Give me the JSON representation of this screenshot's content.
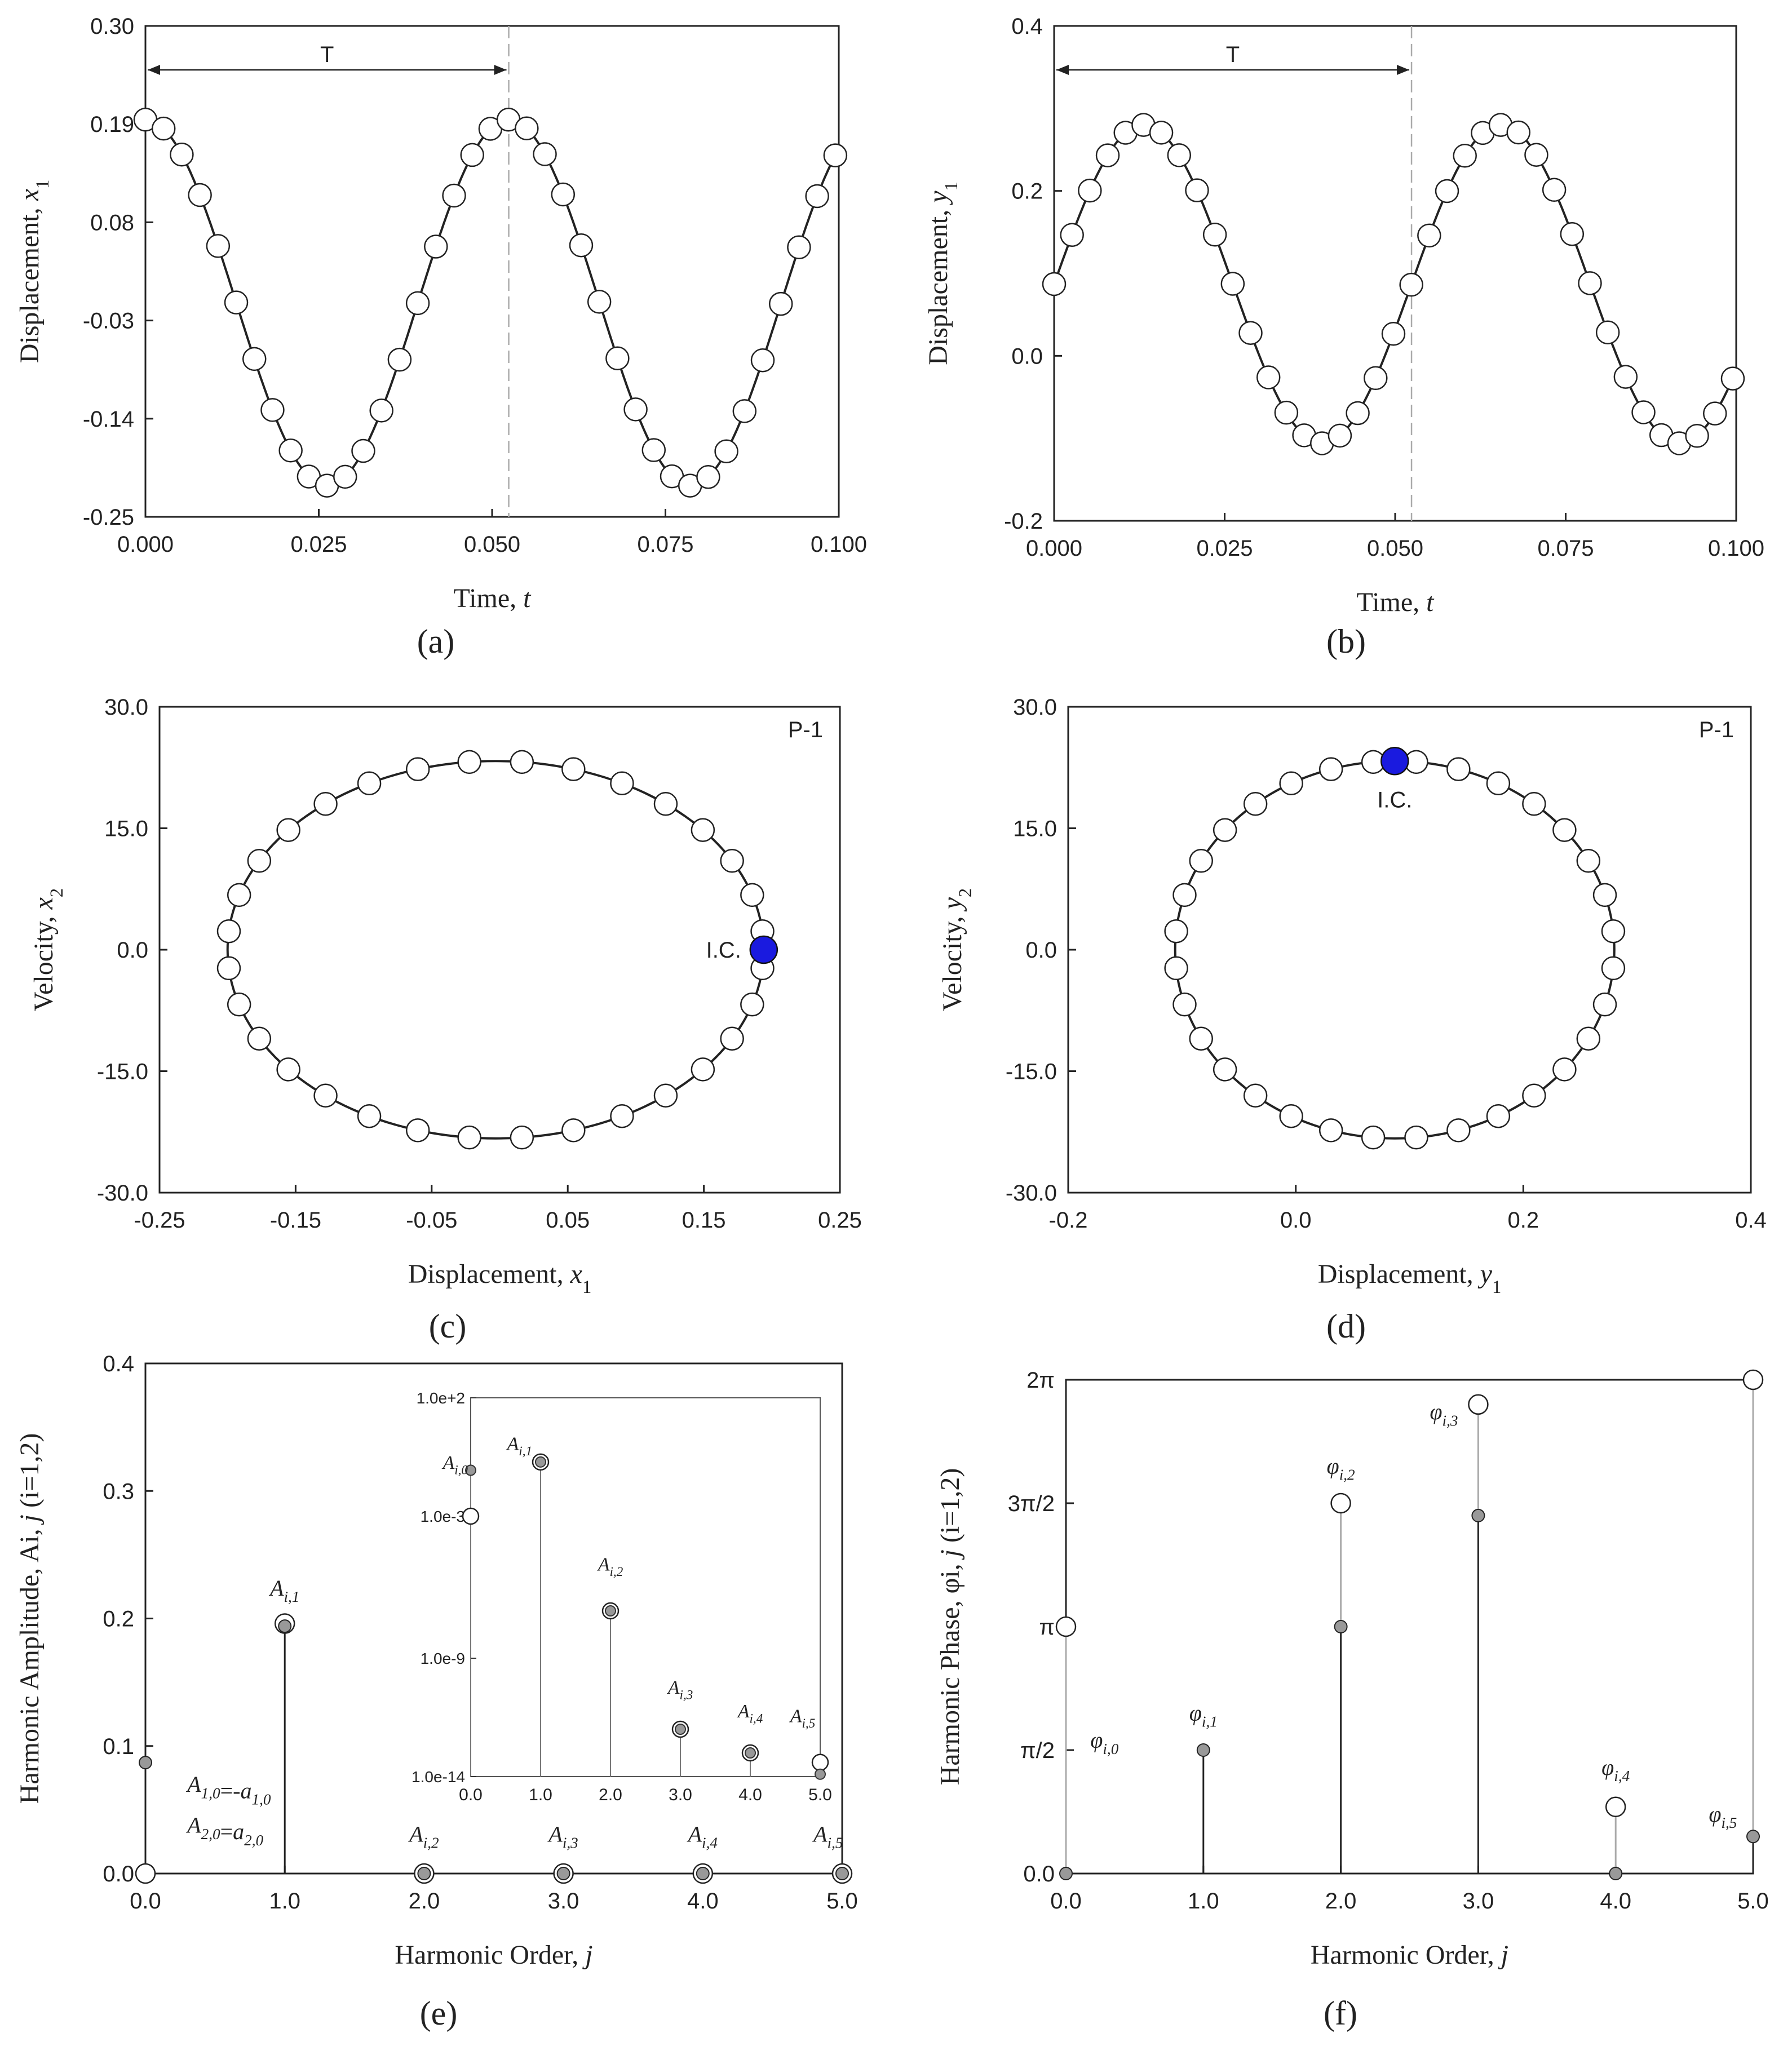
{
  "panels": [
    {
      "id": "a",
      "caption": "(a)",
      "type": "line",
      "xlabel": "Time,  t",
      "ylabel": "Displacement, x1",
      "xlim": [
        0.0,
        0.1
      ],
      "ylim": [
        -0.25,
        0.3
      ],
      "xticks": [
        "0.000",
        "0.025",
        "0.050",
        "0.075",
        "0.100"
      ],
      "xtick_values": [
        0.0,
        0.025,
        0.05,
        0.075,
        0.1
      ],
      "yticks": [
        "-0.25",
        "-0.14",
        "-0.03",
        "0.08",
        "0.19",
        "0.30"
      ],
      "ytick_values": [
        -0.25,
        -0.14,
        -0.03,
        0.08,
        0.19,
        0.3
      ],
      "period_label": "T",
      "period_value": 0.0524,
      "series": {
        "name": "x1",
        "mean": -0.01,
        "amplitude": 0.205,
        "period": 0.0524,
        "phase": 0.0,
        "func": "cos",
        "t_end": 0.0995,
        "points": 39
      }
    },
    {
      "id": "b",
      "caption": "(b)",
      "type": "line",
      "xlabel": "Time,  t",
      "ylabel": "Displacement, y1",
      "xlim": [
        0.0,
        0.1
      ],
      "ylim": [
        -0.2,
        0.4
      ],
      "xticks": [
        "0.000",
        "0.025",
        "0.050",
        "0.075",
        "0.100"
      ],
      "xtick_values": [
        0.0,
        0.025,
        0.05,
        0.075,
        0.1
      ],
      "yticks": [
        "-0.2",
        "0.0",
        "0.2",
        "0.4"
      ],
      "ytick_values": [
        -0.2,
        0.0,
        0.2,
        0.4
      ],
      "period_label": "T",
      "period_value": 0.0524,
      "series": {
        "name": "y1",
        "mean": 0.087,
        "amplitude": 0.193,
        "period": 0.0524,
        "phase": 0.0,
        "func": "sin",
        "t_end": 0.0995,
        "points": 39
      }
    },
    {
      "id": "c",
      "caption": "(c)",
      "type": "scatter",
      "xlabel": "Displacement, x1",
      "ylabel": "Velocity, x2",
      "xlim": [
        -0.25,
        0.25
      ],
      "ylim": [
        -30.0,
        30.0
      ],
      "xticks": [
        "-0.25",
        "-0.15",
        "-0.05",
        "0.05",
        "0.15",
        "0.25"
      ],
      "xtick_values": [
        -0.25,
        -0.15,
        -0.05,
        0.05,
        0.15,
        0.25
      ],
      "yticks": [
        "-30.0",
        "-15.0",
        "0.0",
        "15.0",
        "30.0"
      ],
      "ytick_values": [
        -30.0,
        -15.0,
        0.0,
        15.0,
        30.0
      ],
      "corner_label": "P-1",
      "ellipse": {
        "cx": -0.003,
        "cy": 0.0,
        "rx": 0.197,
        "ry": 23.3,
        "points": 32
      },
      "ic": {
        "x": 0.194,
        "y": 0.0,
        "label": "I.C."
      }
    },
    {
      "id": "d",
      "caption": "(d)",
      "type": "scatter",
      "xlabel": "Displacement, y1",
      "ylabel": "Velocity, y2",
      "xlim": [
        -0.2,
        0.4
      ],
      "ylim": [
        -30.0,
        30.0
      ],
      "xticks": [
        "-0.2",
        "0.0",
        "0.2",
        "0.4"
      ],
      "xtick_values": [
        -0.2,
        0.0,
        0.2,
        0.4
      ],
      "yticks": [
        "-30.0",
        "-15.0",
        "0.0",
        "15.0",
        "30.0"
      ],
      "ytick_values": [
        -30.0,
        -15.0,
        0.0,
        15.0,
        30.0
      ],
      "corner_label": "P-1",
      "ellipse": {
        "cx": 0.087,
        "cy": 0.0,
        "rx": 0.193,
        "ry": 23.3,
        "points": 32
      },
      "ic": {
        "x": 0.087,
        "y": 23.3,
        "label": "I.C."
      }
    },
    {
      "id": "e",
      "caption": "(e)",
      "type": "stem",
      "xlabel": "Harmonic Order, j",
      "ylabel": "Harmonic Amplitude, Ai, j (i=1,2)",
      "xlim": [
        0.0,
        5.0
      ],
      "ylim": [
        0.0,
        0.4
      ],
      "xticks": [
        "0.0",
        "1.0",
        "2.0",
        "3.0",
        "4.0",
        "5.0"
      ],
      "xtick_values": [
        0,
        1,
        2,
        3,
        4,
        5
      ],
      "yticks": [
        "0.0",
        "0.1",
        "0.2",
        "0.3",
        "0.4"
      ],
      "ytick_values": [
        0.0,
        0.1,
        0.2,
        0.3,
        0.4
      ],
      "stems": [
        {
          "j": 0,
          "filled": 0.087,
          "open": 0.0
        },
        {
          "j": 1,
          "filled": 0.194,
          "open": 0.196
        },
        {
          "j": 2,
          "filled": 0.0,
          "open": 0.0
        },
        {
          "j": 3,
          "filled": 0.0,
          "open": 0.0
        },
        {
          "j": 4,
          "filled": 0.0,
          "open": 0.0
        },
        {
          "j": 5,
          "filled": 0.0,
          "open": 0.0
        }
      ],
      "labels": [
        {
          "text": "A1,0=-a1,0",
          "j": 0.3,
          "v": 0.064
        },
        {
          "text": "A2,0=a2,0",
          "j": 0.3,
          "v": 0.032
        },
        {
          "text": "Ai,1",
          "j": 1.0,
          "v": 0.218
        },
        {
          "text": "Ai,2",
          "j": 2.0,
          "v": 0.025
        },
        {
          "text": "Ai,3",
          "j": 3.0,
          "v": 0.025
        },
        {
          "text": "Ai,4",
          "j": 4.0,
          "v": 0.025
        },
        {
          "text": "Ai,5",
          "j": 4.9,
          "v": 0.025
        }
      ],
      "inset": {
        "scale": "log",
        "xlim": [
          0.0,
          5.0
        ],
        "log_ylim": [
          -14,
          2
        ],
        "xticks": [
          "0.0",
          "1.0",
          "2.0",
          "3.0",
          "4.0",
          "5.0"
        ],
        "xtick_values": [
          0,
          1,
          2,
          3,
          4,
          5
        ],
        "yticks": [
          "1.0e-14",
          "1.0e-9",
          "1.0e-3",
          "1.0e+2"
        ],
        "ytick_logs": [
          -14,
          -9,
          -3,
          2
        ],
        "stems": [
          {
            "j": 0,
            "filled_log": -1.06,
            "open_log": -3.0
          },
          {
            "j": 1,
            "filled_log": -0.71,
            "open_log": -0.71
          },
          {
            "j": 2,
            "filled_log": -7.0,
            "open_log": -7.0
          },
          {
            "j": 3,
            "filled_log": -12.0,
            "open_log": -12.0
          },
          {
            "j": 4,
            "filled_log": -13.0,
            "open_log": -13.0
          },
          {
            "j": 5,
            "filled_log": -13.9,
            "open_log": -13.4
          }
        ],
        "labels": [
          {
            "text": "Ai,0",
            "j": -0.22,
            "log": -1.0
          },
          {
            "text": "Ai,1",
            "j": 0.7,
            "log": -0.2
          },
          {
            "text": "Ai,2",
            "j": 2.0,
            "log": -5.3
          },
          {
            "text": "Ai,3",
            "j": 3.0,
            "log": -10.5
          },
          {
            "text": "Ai,4",
            "j": 4.0,
            "log": -11.5
          },
          {
            "text": "Ai,5",
            "j": 4.75,
            "log": -11.7
          }
        ]
      }
    },
    {
      "id": "f",
      "caption": "(f)",
      "type": "stem",
      "xlabel": "Harmonic Order, j",
      "ylabel": "Harmonic Phase, φi, j (i=1,2)",
      "xlim": [
        0.0,
        5.0
      ],
      "ylim_pi": [
        0.0,
        2.0
      ],
      "xticks": [
        "0.0",
        "1.0",
        "2.0",
        "3.0",
        "4.0",
        "5.0"
      ],
      "xtick_values": [
        0,
        1,
        2,
        3,
        4,
        5
      ],
      "yticks": [
        "0.0",
        "π/2",
        "π",
        "3π/2",
        "2π"
      ],
      "ytick_values_pi": [
        0.0,
        0.5,
        1.0,
        1.5,
        2.0
      ],
      "stems": [
        {
          "j": 0,
          "filled_pi": 0.0,
          "open_pi": 1.0
        },
        {
          "j": 1,
          "filled_pi": 0.5,
          "open_pi": null
        },
        {
          "j": 2,
          "filled_pi": 1.0,
          "open_pi": 1.5
        },
        {
          "j": 3,
          "filled_pi": 1.45,
          "open_pi": 1.9
        },
        {
          "j": 4,
          "filled_pi": 0.0,
          "open_pi": 0.27
        },
        {
          "j": 5,
          "filled_pi": 0.15,
          "open_pi": 2.0
        }
      ],
      "labels": [
        {
          "text": "φi,0",
          "j": 0.28,
          "v_pi": 0.51
        },
        {
          "text": "φi,1",
          "j": 1.0,
          "v_pi": 0.62
        },
        {
          "text": "φi,2",
          "j": 2.0,
          "v_pi": 1.62
        },
        {
          "text": "φi,3",
          "j": 2.75,
          "v_pi": 1.84
        },
        {
          "text": "φi,4",
          "j": 4.0,
          "v_pi": 0.4
        },
        {
          "text": "φi,5",
          "j": 4.78,
          "v_pi": 0.21
        }
      ]
    }
  ],
  "chart_data": [
    {
      "type": "line",
      "title": "(a)",
      "xlabel": "Time, t",
      "ylabel": "Displacement, x1",
      "xlim": [
        0.0,
        0.1
      ],
      "ylim": [
        -0.25,
        0.3
      ],
      "series": [
        {
          "name": "x1(t)",
          "description": "periodic, period T ≈ 0.0524, max ≈ 0.195 at t=0, min ≈ -0.215 at t≈0.026"
        }
      ]
    },
    {
      "type": "line",
      "title": "(b)",
      "xlabel": "Time, t",
      "ylabel": "Displacement, y1",
      "xlim": [
        0.0,
        0.1
      ],
      "ylim": [
        -0.2,
        0.4
      ],
      "series": [
        {
          "name": "y1(t)",
          "description": "periodic, period T ≈ 0.0524, starts 0.087, max ≈ 0.28, min ≈ -0.106"
        }
      ]
    },
    {
      "type": "scatter",
      "title": "(c)",
      "xlabel": "Displacement, x1",
      "ylabel": "Velocity, x2",
      "xlim": [
        -0.25,
        0.25
      ],
      "ylim": [
        -30,
        30
      ],
      "series": [
        {
          "name": "P-1 orbit",
          "x_range": [
            -0.2,
            0.194
          ],
          "y_range": [
            -23.3,
            23.3
          ]
        },
        {
          "name": "I.C.",
          "x": [
            0.194
          ],
          "y": [
            0.0
          ]
        }
      ]
    },
    {
      "type": "scatter",
      "title": "(d)",
      "xlabel": "Displacement, y1",
      "ylabel": "Velocity, y2",
      "xlim": [
        -0.2,
        0.4
      ],
      "ylim": [
        -30,
        30
      ],
      "series": [
        {
          "name": "P-1 orbit",
          "x_range": [
            -0.106,
            0.28
          ],
          "y_range": [
            -23.3,
            23.3
          ]
        },
        {
          "name": "I.C.",
          "x": [
            0.087
          ],
          "y": [
            23.3
          ]
        }
      ]
    },
    {
      "type": "bar",
      "title": "(e)",
      "xlabel": "Harmonic Order, j",
      "ylabel": "Harmonic Amplitude, Ai,j (i=1,2)",
      "categories": [
        0,
        1,
        2,
        3,
        4,
        5
      ],
      "series": [
        {
          "name": "A1,j",
          "values": [
            0.087,
            0.194,
            0.0,
            0.0,
            0.0,
            0.0
          ]
        },
        {
          "name": "A2,j",
          "values": [
            0.0,
            0.196,
            0.0,
            0.0,
            0.0,
            0.0
          ]
        }
      ],
      "ylim": [
        0.0,
        0.4
      ]
    },
    {
      "type": "bar",
      "title": "(f)",
      "xlabel": "Harmonic Order, j",
      "ylabel": "Harmonic Phase, φi,j (i=1,2)",
      "categories": [
        0,
        1,
        2,
        3,
        4,
        5
      ],
      "series": [
        {
          "name": "φ (filled), units of π",
          "values": [
            0.0,
            0.5,
            1.0,
            1.45,
            0.0,
            0.15
          ]
        },
        {
          "name": "φ (open), units of π",
          "values": [
            1.0,
            null,
            1.5,
            1.9,
            0.27,
            2.0
          ]
        }
      ],
      "ylim": [
        0,
        2
      ]
    }
  ]
}
